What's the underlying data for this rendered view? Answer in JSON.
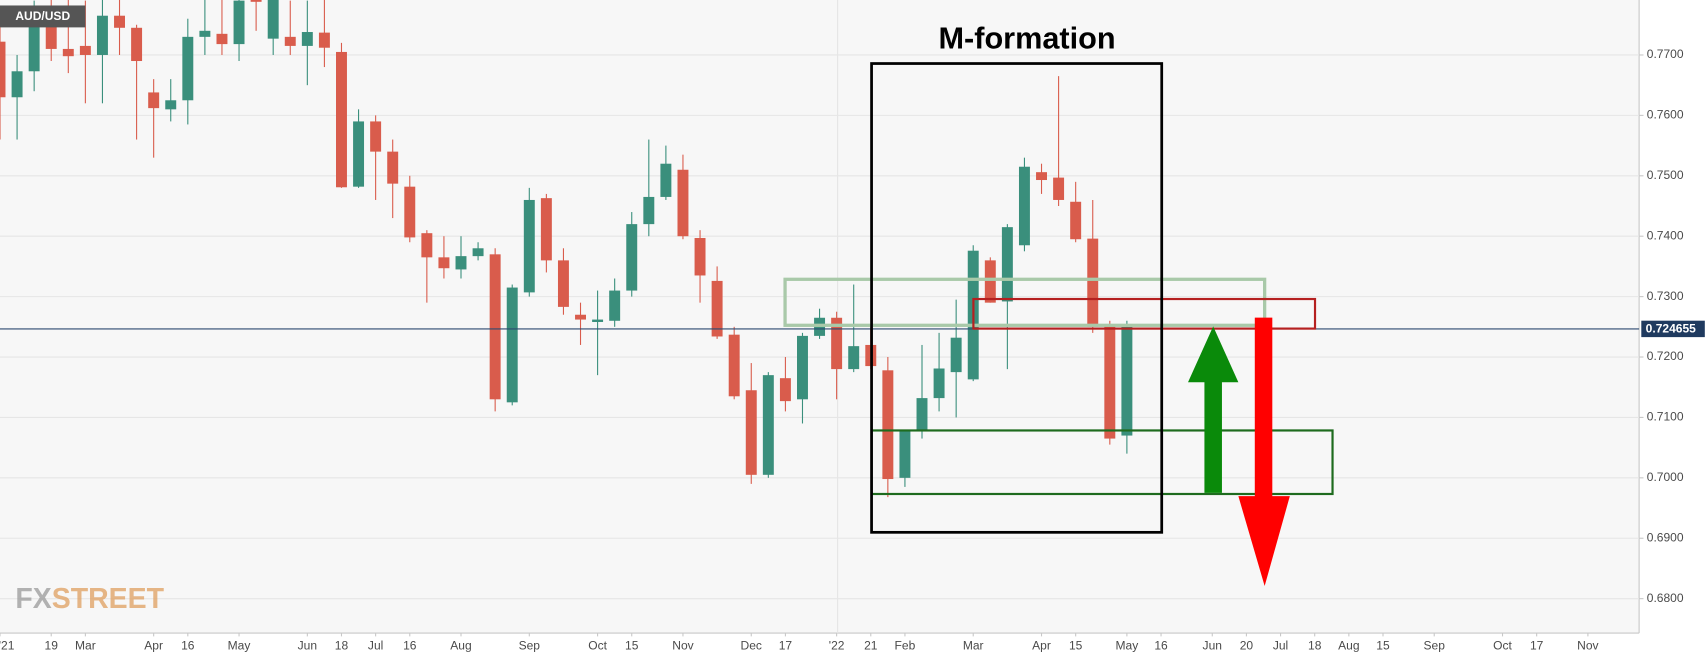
{
  "chart_data": {
    "type": "candlestick",
    "title": "M-formation",
    "symbol": "AUD/USD",
    "watermark": {
      "left": "FX",
      "right": "STREET"
    },
    "up_color": "#3a8f7c",
    "down_color": "#d95c4c",
    "grid": true,
    "last_price": 0.724655,
    "x": [
      0,
      1,
      2,
      3,
      4,
      5,
      6,
      7,
      8,
      9,
      10,
      11,
      12,
      13,
      14,
      15,
      16,
      17,
      18,
      19,
      20,
      21,
      22,
      23,
      24,
      25,
      26,
      27,
      28,
      29,
      30,
      31,
      32,
      33,
      34,
      35,
      36,
      37,
      38,
      39,
      40,
      41,
      42,
      43,
      44,
      45,
      46,
      47,
      48,
      49,
      50,
      51,
      52,
      53,
      54,
      55,
      56,
      57,
      58,
      59,
      60,
      61,
      62,
      63,
      64,
      65,
      66
    ],
    "open": [
      0.7722,
      0.763,
      0.7673,
      0.777,
      0.771,
      0.7715,
      0.77,
      0.7765,
      0.7745,
      0.7638,
      0.761,
      0.7625,
      0.773,
      0.7735,
      0.7718,
      0.78,
      0.7727,
      0.773,
      0.7715,
      0.7737,
      0.7705,
      0.7482,
      0.759,
      0.754,
      0.7482,
      0.7405,
      0.7365,
      0.7345,
      0.7367,
      0.737,
      0.7125,
      0.7307,
      0.7463,
      0.736,
      0.727,
      0.7258,
      0.726,
      0.731,
      0.742,
      0.7465,
      0.751,
      0.7397,
      0.7326,
      0.7237,
      0.7145,
      0.7005,
      0.7165,
      0.713,
      0.7235,
      0.7265,
      0.718,
      0.722,
      0.7178,
      0.7,
      0.7077,
      0.7132,
      0.7175,
      0.7163,
      0.736,
      0.7292,
      0.7385,
      0.7506,
      0.7497,
      0.7457,
      0.7396,
      0.7253,
      0.707
    ],
    "high": [
      0.775,
      0.77,
      0.779,
      0.78,
      0.78,
      0.779,
      0.78,
      0.78,
      0.775,
      0.766,
      0.766,
      0.776,
      0.78,
      0.78,
      0.78,
      0.781,
      0.78,
      0.779,
      0.779,
      0.78,
      0.772,
      0.761,
      0.76,
      0.756,
      0.75,
      0.741,
      0.74,
      0.74,
      0.739,
      0.738,
      0.732,
      0.748,
      0.747,
      0.738,
      0.729,
      0.731,
      0.733,
      0.744,
      0.756,
      0.755,
      0.7535,
      0.741,
      0.735,
      0.725,
      0.719,
      0.7175,
      0.72,
      0.724,
      0.728,
      0.7275,
      0.732,
      0.725,
      0.72,
      0.708,
      0.722,
      0.724,
      0.7295,
      0.7385,
      0.7365,
      0.742,
      0.753,
      0.752,
      0.7665,
      0.749,
      0.746,
      0.726,
      0.726
    ],
    "low": [
      0.756,
      0.756,
      0.764,
      0.769,
      0.767,
      0.762,
      0.762,
      0.77,
      0.756,
      0.753,
      0.759,
      0.7585,
      0.77,
      0.77,
      0.769,
      0.774,
      0.77,
      0.77,
      0.765,
      0.768,
      0.748,
      0.748,
      0.746,
      0.743,
      0.739,
      0.729,
      0.733,
      0.733,
      0.736,
      0.711,
      0.712,
      0.73,
      0.734,
      0.727,
      0.722,
      0.717,
      0.725,
      0.73,
      0.74,
      0.746,
      0.7395,
      0.729,
      0.723,
      0.713,
      0.699,
      0.7,
      0.711,
      0.709,
      0.723,
      0.713,
      0.7175,
      0.718,
      0.6968,
      0.6985,
      0.7065,
      0.711,
      0.71,
      0.716,
      0.729,
      0.718,
      0.7375,
      0.747,
      0.745,
      0.739,
      0.724,
      0.7055,
      0.704
    ],
    "close": [
      0.763,
      0.7673,
      0.777,
      0.771,
      0.7698,
      0.77,
      0.7765,
      0.7745,
      0.769,
      0.7612,
      0.7625,
      0.773,
      0.774,
      0.7718,
      0.779,
      0.7788,
      0.78,
      0.7715,
      0.7738,
      0.7712,
      0.7481,
      0.759,
      0.754,
      0.7487,
      0.7398,
      0.7365,
      0.7347,
      0.7367,
      0.738,
      0.713,
      0.7315,
      0.746,
      0.736,
      0.7283,
      0.7262,
      0.7262,
      0.731,
      0.742,
      0.7465,
      0.752,
      0.74,
      0.7335,
      0.7234,
      0.7135,
      0.7005,
      0.717,
      0.7127,
      0.7235,
      0.7265,
      0.718,
      0.7218,
      0.7185,
      0.6998,
      0.7077,
      0.7132,
      0.7181,
      0.7232,
      0.7376,
      0.729,
      0.7415,
      0.7515,
      0.7493,
      0.746,
      0.7395,
      0.725,
      0.7065,
      0.725
    ],
    "xlim": [
      0,
      96
    ],
    "xticks": [
      {
        "value": 0,
        "label": "'21"
      },
      {
        "value": 3,
        "label": "19"
      },
      {
        "value": 5,
        "label": "Mar"
      },
      {
        "value": 9,
        "label": "Apr"
      },
      {
        "value": 11,
        "label": "16"
      },
      {
        "value": 14,
        "label": "May"
      },
      {
        "value": 18,
        "label": "Jun"
      },
      {
        "value": 20,
        "label": "18"
      },
      {
        "value": 22,
        "label": "Jul"
      },
      {
        "value": 24,
        "label": "16"
      },
      {
        "value": 27,
        "label": "Aug"
      },
      {
        "value": 31,
        "label": "Sep"
      },
      {
        "value": 35,
        "label": "Oct"
      },
      {
        "value": 37,
        "label": "15"
      },
      {
        "value": 40,
        "label": "Nov"
      },
      {
        "value": 44,
        "label": "Dec"
      },
      {
        "value": 46,
        "label": "17"
      },
      {
        "value": 49,
        "label": "'22"
      },
      {
        "value": 51,
        "label": "21"
      },
      {
        "value": 53,
        "label": "Feb"
      },
      {
        "value": 57,
        "label": "Mar"
      },
      {
        "value": 61,
        "label": "Apr"
      },
      {
        "value": 63,
        "label": "15"
      },
      {
        "value": 66,
        "label": "May"
      },
      {
        "value": 68,
        "label": "16"
      },
      {
        "value": 71,
        "label": "Jun"
      },
      {
        "value": 73,
        "label": "20"
      },
      {
        "value": 75,
        "label": "Jul"
      },
      {
        "value": 77,
        "label": "18"
      },
      {
        "value": 79,
        "label": "Aug"
      },
      {
        "value": 81,
        "label": "15"
      },
      {
        "value": 84,
        "label": "Sep"
      },
      {
        "value": 88,
        "label": "Oct"
      },
      {
        "value": 90,
        "label": "17"
      },
      {
        "value": 93,
        "label": "Nov"
      }
    ],
    "ylim": [
      0.6743,
      0.7791
    ],
    "yticks": [
      {
        "value": 0.68,
        "label": "0.6800"
      },
      {
        "value": 0.69,
        "label": "0.6900"
      },
      {
        "value": 0.7,
        "label": "0.7000"
      },
      {
        "value": 0.71,
        "label": "0.7100"
      },
      {
        "value": 0.72,
        "label": "0.7200"
      },
      {
        "value": 0.73,
        "label": "0.7300"
      },
      {
        "value": 0.74,
        "label": "0.7400"
      },
      {
        "value": 0.75,
        "label": "0.7500"
      },
      {
        "value": 0.76,
        "label": "0.7600"
      },
      {
        "value": 0.77,
        "label": "0.7700"
      }
    ]
  }
}
